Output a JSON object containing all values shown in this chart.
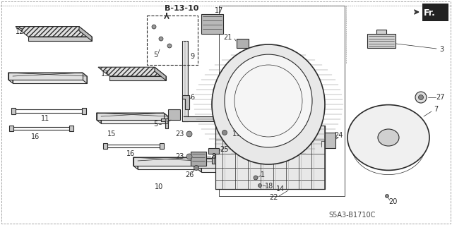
{
  "background_color": "#ffffff",
  "diagram_code": "S5A3-B1710C",
  "ref_code": "B-13-10",
  "line_color": "#2a2a2a",
  "label_color": "#1a1a1a",
  "figsize": [
    6.4,
    3.19
  ],
  "dpi": 100
}
